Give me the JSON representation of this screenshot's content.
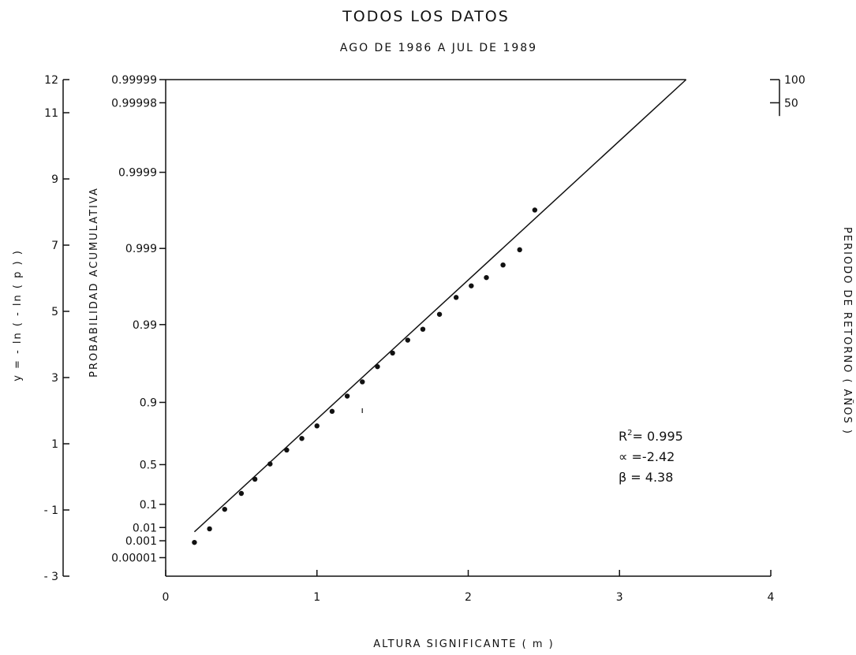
{
  "chart_data": {
    "type": "scatter",
    "title": "TODOS LOS DATOS",
    "subtitle": "AGO DE 1986 A JUL DE 1989",
    "xlabel": "ALTURA SIGNIFICANTE ( m )",
    "ylabel_outer": "y = - ln ( - ln ( p ) )",
    "ylabel_inner": "PROBABILIDAD  ACUMULATIVA",
    "ylabel_right": "PERIODO  DE  RETORNO ( AÑOS )",
    "xlim": [
      0,
      4
    ],
    "ylim": [
      -3,
      12
    ],
    "x_ticks": [
      {
        "v": 0,
        "label": "0"
      },
      {
        "v": 1,
        "label": "1"
      },
      {
        "v": 2,
        "label": "2"
      },
      {
        "v": 3,
        "label": "3"
      },
      {
        "v": 4,
        "label": "4"
      }
    ],
    "y_ticks_outer": [
      {
        "v": 12,
        "label": "12"
      },
      {
        "v": 11,
        "label": "11"
      },
      {
        "v": 9,
        "label": "9"
      },
      {
        "v": 7,
        "label": "7"
      },
      {
        "v": 5,
        "label": "5"
      },
      {
        "v": 3,
        "label": "3"
      },
      {
        "v": 1,
        "label": "1"
      },
      {
        "v": -1,
        "label": "- 1"
      },
      {
        "v": -3,
        "label": "- 3"
      }
    ],
    "probability_ticks": [
      {
        "y": 12,
        "label": "0.99999"
      },
      {
        "y": 11.3,
        "label": "0.99998"
      },
      {
        "y": 9.2,
        "label": "0.9999"
      },
      {
        "y": 6.9,
        "label": "0.999"
      },
      {
        "y": 4.6,
        "label": "0.99"
      },
      {
        "y": 2.25,
        "label": "0.9"
      },
      {
        "y": 0.37,
        "label": "0.5"
      },
      {
        "y": -0.83,
        "label": "0.1"
      },
      {
        "y": -1.53,
        "label": "0.01"
      },
      {
        "y": -1.93,
        "label": "0.001"
      },
      {
        "y": -2.44,
        "label": "0.00001"
      }
    ],
    "return_period_ticks": [
      {
        "y": 12,
        "label": "100"
      },
      {
        "y": 11.3,
        "label": "50"
      }
    ],
    "points": [
      {
        "x": 0.19,
        "y": -1.98
      },
      {
        "x": 0.29,
        "y": -1.57
      },
      {
        "x": 0.39,
        "y": -0.98
      },
      {
        "x": 0.5,
        "y": -0.5
      },
      {
        "x": 0.59,
        "y": -0.07
      },
      {
        "x": 0.69,
        "y": 0.39
      },
      {
        "x": 0.8,
        "y": 0.81
      },
      {
        "x": 0.9,
        "y": 1.16
      },
      {
        "x": 1.0,
        "y": 1.54
      },
      {
        "x": 1.1,
        "y": 1.98
      },
      {
        "x": 1.2,
        "y": 2.44
      },
      {
        "x": 1.3,
        "y": 2.87
      },
      {
        "x": 1.4,
        "y": 3.33
      },
      {
        "x": 1.5,
        "y": 3.74
      },
      {
        "x": 1.6,
        "y": 4.13
      },
      {
        "x": 1.7,
        "y": 4.46
      },
      {
        "x": 1.81,
        "y": 4.91
      },
      {
        "x": 1.92,
        "y": 5.42
      },
      {
        "x": 2.02,
        "y": 5.77
      },
      {
        "x": 2.12,
        "y": 6.02
      },
      {
        "x": 2.23,
        "y": 6.4
      },
      {
        "x": 2.34,
        "y": 6.86
      },
      {
        "x": 2.44,
        "y": 8.06
      }
    ],
    "fit_line": {
      "x": [
        0.19,
        3.44
      ],
      "y": [
        -1.66,
        12.0
      ]
    },
    "stray_mark": {
      "x": 1.3,
      "y": 2.0
    },
    "annotations": {
      "r2_prefix": "R",
      "r2_sup": "2",
      "r2_value": "= 0.995",
      "alpha": "∝ =-2.42",
      "beta": "β = 4.38"
    }
  }
}
